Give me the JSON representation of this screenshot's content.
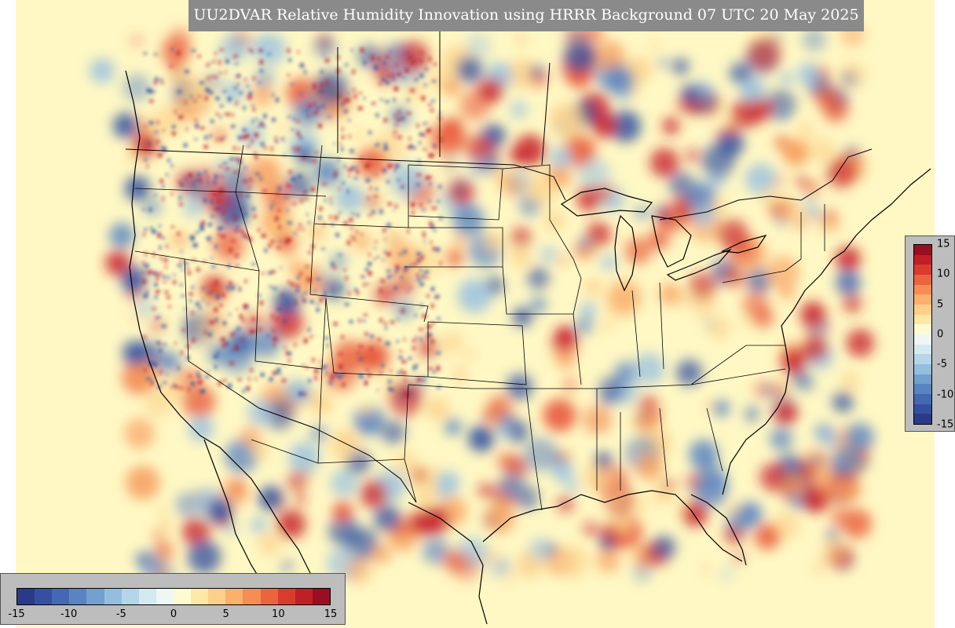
{
  "title": "UU2DVAR Relative Humidity Innovation using HRRR Background 07 UTC 20 May 2025",
  "colorbar": {
    "min": -15,
    "max": 15,
    "tick_labels": [
      "-15",
      "-10",
      "-5",
      "0",
      "5",
      "10",
      "15"
    ],
    "colors": [
      "#2b3a87",
      "#3550a0",
      "#4468b1",
      "#5a84c0",
      "#74a0cf",
      "#93bedd",
      "#b4d6e8",
      "#d4eaf1",
      "#eef7f3",
      "#fdfbd2",
      "#fee8a6",
      "#fdd089",
      "#fbb06c",
      "#f58d54",
      "#ea6440",
      "#d83c2d",
      "#c01f26",
      "#9a0e22"
    ]
  },
  "map_colors": {
    "background": "#fff8c4",
    "land_base": "#fbe9a8",
    "positive": "#c8202a",
    "negative": "#2f4fa0"
  }
}
